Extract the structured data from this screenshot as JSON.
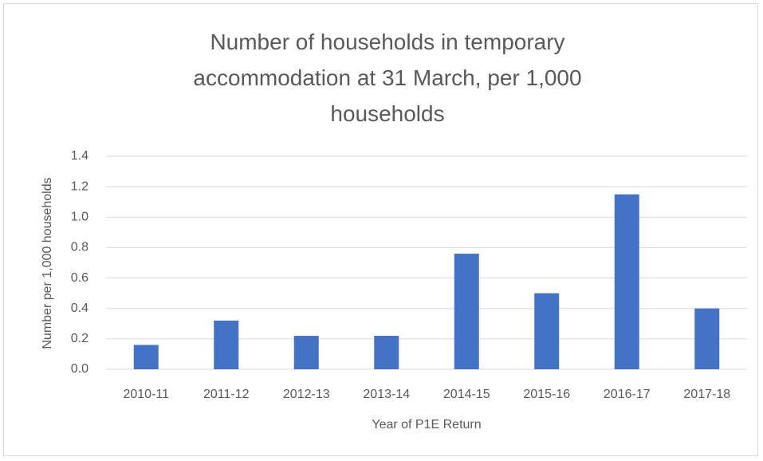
{
  "chart_data": {
    "type": "bar",
    "title": "Number of households in temporary accommodation at 31 March, per 1,000 households",
    "x_label": "Year of P1E Return",
    "y_label": "Number per 1,000 households",
    "categories": [
      "2010-11",
      "2011-12",
      "2012-13",
      "2013-14",
      "2014-15",
      "2015-16",
      "2016-17",
      "2017-18"
    ],
    "values": [
      0.16,
      0.32,
      0.22,
      0.22,
      0.76,
      0.5,
      1.15,
      0.4
    ],
    "color": "#4472c4",
    "ylim": [
      0,
      1.4
    ],
    "yticks": [
      {
        "value": 0,
        "label": "0.0"
      },
      0.2,
      0.4,
      0.6,
      0.8,
      {
        "value": 1,
        "label": "1.0"
      },
      1.2,
      1.4
    ],
    "grid": true
  }
}
